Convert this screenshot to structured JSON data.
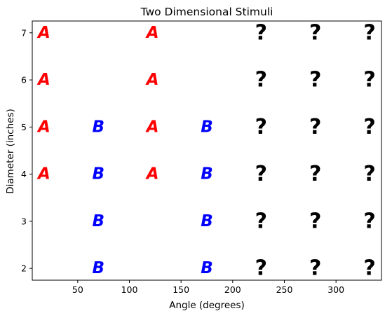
{
  "chart_data": {
    "type": "scatter",
    "title": "Two Dimensional Stimuli",
    "xlabel": "Angle (degrees)",
    "ylabel": "Diameter (inches)",
    "xlim": [
      6,
      344
    ],
    "ylim": [
      1.75,
      7.25
    ],
    "xticks": [
      50,
      100,
      150,
      200,
      250,
      300
    ],
    "yticks": [
      2,
      3,
      4,
      5,
      6,
      7
    ],
    "grid": false,
    "series": [
      {
        "marker": "A",
        "color": "#ff0000",
        "points": [
          [
            17.5,
            4
          ],
          [
            17.5,
            5
          ],
          [
            17.5,
            6
          ],
          [
            17.5,
            7
          ],
          [
            122.5,
            4
          ],
          [
            122.5,
            5
          ],
          [
            122.5,
            6
          ],
          [
            122.5,
            7
          ]
        ]
      },
      {
        "marker": "B",
        "color": "#0000ff",
        "points": [
          [
            70,
            2
          ],
          [
            70,
            3
          ],
          [
            70,
            4
          ],
          [
            70,
            5
          ],
          [
            175,
            2
          ],
          [
            175,
            3
          ],
          [
            175,
            4
          ],
          [
            175,
            5
          ]
        ]
      },
      {
        "marker": "?",
        "color": "#000000",
        "points": [
          [
            227.5,
            2
          ],
          [
            227.5,
            3
          ],
          [
            227.5,
            4
          ],
          [
            227.5,
            5
          ],
          [
            227.5,
            6
          ],
          [
            227.5,
            7
          ],
          [
            280,
            2
          ],
          [
            280,
            3
          ],
          [
            280,
            4
          ],
          [
            280,
            5
          ],
          [
            280,
            6
          ],
          [
            280,
            7
          ],
          [
            332.5,
            2
          ],
          [
            332.5,
            3
          ],
          [
            332.5,
            4
          ],
          [
            332.5,
            5
          ],
          [
            332.5,
            6
          ],
          [
            332.5,
            7
          ]
        ]
      }
    ]
  }
}
